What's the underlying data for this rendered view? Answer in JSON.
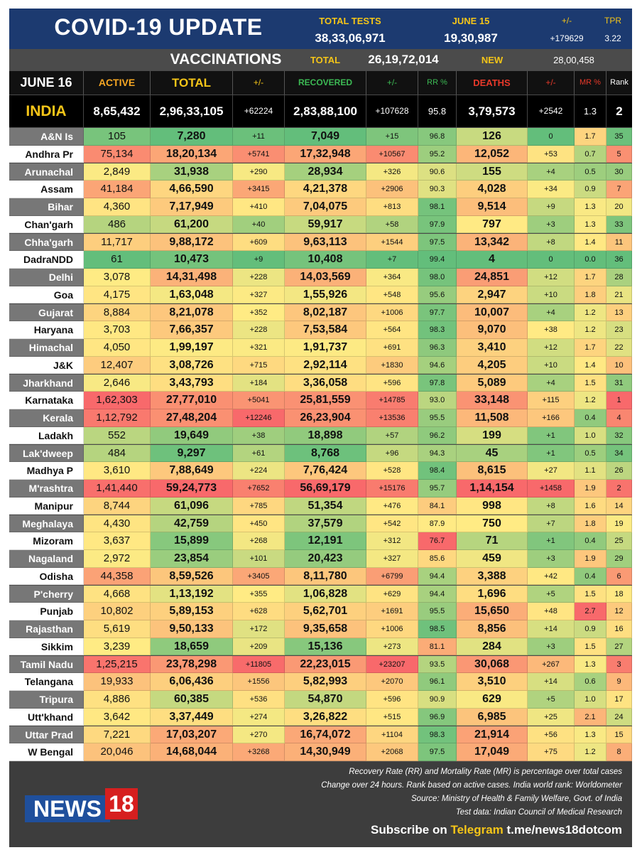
{
  "header": {
    "title": "COVID-19 UPDATE",
    "total_tests_label": "TOTAL TESTS",
    "total_tests": "38,33,06,971",
    "june15_label": "JUNE 15",
    "june15": "19,30,987",
    "pm_label": "+/-",
    "pm": "+179629",
    "tpr_label": "TPR",
    "tpr": "3.22"
  },
  "vaccinations": {
    "label": "VACCINATIONS",
    "total_label": "TOTAL",
    "total": "26,19,72,014",
    "new_label": "NEW",
    "new": "28,00,458"
  },
  "columns": {
    "date": "JUNE 16",
    "active": "ACTIVE",
    "total": "TOTAL",
    "pm1": "+/-",
    "recovered": "RECOVERED",
    "pm2": "+/-",
    "rr": "RR %",
    "deaths": "DEATHS",
    "pm3": "+/-",
    "mr": "MR %",
    "rank": "Rank"
  },
  "india": {
    "name": "INDIA",
    "active": "8,65,432",
    "total": "2,96,33,105",
    "d_total": "+62224",
    "recovered": "2,83,88,100",
    "d_rec": "+107628",
    "rr": "95.8",
    "deaths": "3,79,573",
    "d_deaths": "+2542",
    "mr": "1.3",
    "rank": "2"
  },
  "rows": [
    {
      "name": "A&N Is",
      "active": "105",
      "total": "7,280",
      "d_total": "+11",
      "recovered": "7,049",
      "d_rec": "+15",
      "rr": "96.8",
      "deaths": "126",
      "d_deaths": "0",
      "mr": "1.7",
      "rank": "35"
    },
    {
      "name": "Andhra Pr",
      "active": "75,134",
      "total": "18,20,134",
      "d_total": "+5741",
      "recovered": "17,32,948",
      "d_rec": "+10567",
      "rr": "95.2",
      "deaths": "12,052",
      "d_deaths": "+53",
      "mr": "0.7",
      "rank": "5"
    },
    {
      "name": "Arunachal",
      "active": "2,849",
      "total": "31,938",
      "d_total": "+290",
      "recovered": "28,934",
      "d_rec": "+326",
      "rr": "90.6",
      "deaths": "155",
      "d_deaths": "+4",
      "mr": "0.5",
      "rank": "30"
    },
    {
      "name": "Assam",
      "active": "41,184",
      "total": "4,66,590",
      "d_total": "+3415",
      "recovered": "4,21,378",
      "d_rec": "+2906",
      "rr": "90.3",
      "deaths": "4,028",
      "d_deaths": "+34",
      "mr": "0.9",
      "rank": "7"
    },
    {
      "name": "Bihar",
      "active": "4,360",
      "total": "7,17,949",
      "d_total": "+410",
      "recovered": "7,04,075",
      "d_rec": "+813",
      "rr": "98.1",
      "deaths": "9,514",
      "d_deaths": "+9",
      "mr": "1.3",
      "rank": "20"
    },
    {
      "name": "Chan'garh",
      "active": "486",
      "total": "61,200",
      "d_total": "+40",
      "recovered": "59,917",
      "d_rec": "+58",
      "rr": "97.9",
      "deaths": "797",
      "d_deaths": "+3",
      "mr": "1.3",
      "rank": "33"
    },
    {
      "name": "Chha'garh",
      "active": "11,717",
      "total": "9,88,172",
      "d_total": "+609",
      "recovered": "9,63,113",
      "d_rec": "+1544",
      "rr": "97.5",
      "deaths": "13,342",
      "d_deaths": "+8",
      "mr": "1.4",
      "rank": "11"
    },
    {
      "name": "DadraNDD",
      "active": "61",
      "total": "10,473",
      "d_total": "+9",
      "recovered": "10,408",
      "d_rec": "+7",
      "rr": "99.4",
      "deaths": "4",
      "d_deaths": "0",
      "mr": "0.0",
      "rank": "36"
    },
    {
      "name": "Delhi",
      "active": "3,078",
      "total": "14,31,498",
      "d_total": "+228",
      "recovered": "14,03,569",
      "d_rec": "+364",
      "rr": "98.0",
      "deaths": "24,851",
      "d_deaths": "+12",
      "mr": "1.7",
      "rank": "28"
    },
    {
      "name": "Goa",
      "active": "4,175",
      "total": "1,63,048",
      "d_total": "+327",
      "recovered": "1,55,926",
      "d_rec": "+548",
      "rr": "95.6",
      "deaths": "2,947",
      "d_deaths": "+10",
      "mr": "1.8",
      "rank": "21"
    },
    {
      "name": "Gujarat",
      "active": "8,884",
      "total": "8,21,078",
      "d_total": "+352",
      "recovered": "8,02,187",
      "d_rec": "+1006",
      "rr": "97.7",
      "deaths": "10,007",
      "d_deaths": "+4",
      "mr": "1.2",
      "rank": "13"
    },
    {
      "name": "Haryana",
      "active": "3,703",
      "total": "7,66,357",
      "d_total": "+228",
      "recovered": "7,53,584",
      "d_rec": "+564",
      "rr": "98.3",
      "deaths": "9,070",
      "d_deaths": "+38",
      "mr": "1.2",
      "rank": "23"
    },
    {
      "name": "Himachal",
      "active": "4,050",
      "total": "1,99,197",
      "d_total": "+321",
      "recovered": "1,91,737",
      "d_rec": "+691",
      "rr": "96.3",
      "deaths": "3,410",
      "d_deaths": "+12",
      "mr": "1.7",
      "rank": "22"
    },
    {
      "name": "J&K",
      "active": "12,407",
      "total": "3,08,726",
      "d_total": "+715",
      "recovered": "2,92,114",
      "d_rec": "+1830",
      "rr": "94.6",
      "deaths": "4,205",
      "d_deaths": "+10",
      "mr": "1.4",
      "rank": "10"
    },
    {
      "name": "Jharkhand",
      "active": "2,646",
      "total": "3,43,793",
      "d_total": "+184",
      "recovered": "3,36,058",
      "d_rec": "+596",
      "rr": "97.8",
      "deaths": "5,089",
      "d_deaths": "+4",
      "mr": "1.5",
      "rank": "31"
    },
    {
      "name": "Karnataka",
      "active": "1,62,303",
      "total": "27,77,010",
      "d_total": "+5041",
      "recovered": "25,81,559",
      "d_rec": "+14785",
      "rr": "93.0",
      "deaths": "33,148",
      "d_deaths": "+115",
      "mr": "1.2",
      "rank": "1"
    },
    {
      "name": "Kerala",
      "active": "1,12,792",
      "total": "27,48,204",
      "d_total": "+12246",
      "recovered": "26,23,904",
      "d_rec": "+13536",
      "rr": "95.5",
      "deaths": "11,508",
      "d_deaths": "+166",
      "mr": "0.4",
      "rank": "4"
    },
    {
      "name": "Ladakh",
      "active": "552",
      "total": "19,649",
      "d_total": "+38",
      "recovered": "18,898",
      "d_rec": "+57",
      "rr": "96.2",
      "deaths": "199",
      "d_deaths": "+1",
      "mr": "1.0",
      "rank": "32"
    },
    {
      "name": "Lak'dweep",
      "active": "484",
      "total": "9,297",
      "d_total": "+61",
      "recovered": "8,768",
      "d_rec": "+96",
      "rr": "94.3",
      "deaths": "45",
      "d_deaths": "+1",
      "mr": "0.5",
      "rank": "34"
    },
    {
      "name": "Madhya P",
      "active": "3,610",
      "total": "7,88,649",
      "d_total": "+224",
      "recovered": "7,76,424",
      "d_rec": "+528",
      "rr": "98.4",
      "deaths": "8,615",
      "d_deaths": "+27",
      "mr": "1.1",
      "rank": "26"
    },
    {
      "name": "M'rashtra",
      "active": "1,41,440",
      "total": "59,24,773",
      "d_total": "+7652",
      "recovered": "56,69,179",
      "d_rec": "+15176",
      "rr": "95.7",
      "deaths": "1,14,154",
      "d_deaths": "+1458",
      "mr": "1.9",
      "rank": "2"
    },
    {
      "name": "Manipur",
      "active": "8,744",
      "total": "61,096",
      "d_total": "+785",
      "recovered": "51,354",
      "d_rec": "+476",
      "rr": "84.1",
      "deaths": "998",
      "d_deaths": "+8",
      "mr": "1.6",
      "rank": "14"
    },
    {
      "name": "Meghalaya",
      "active": "4,430",
      "total": "42,759",
      "d_total": "+450",
      "recovered": "37,579",
      "d_rec": "+542",
      "rr": "87.9",
      "deaths": "750",
      "d_deaths": "+7",
      "mr": "1.8",
      "rank": "19"
    },
    {
      "name": "Mizoram",
      "active": "3,637",
      "total": "15,899",
      "d_total": "+268",
      "recovered": "12,191",
      "d_rec": "+312",
      "rr": "76.7",
      "deaths": "71",
      "d_deaths": "+1",
      "mr": "0.4",
      "rank": "25"
    },
    {
      "name": "Nagaland",
      "active": "2,972",
      "total": "23,854",
      "d_total": "+101",
      "recovered": "20,423",
      "d_rec": "+327",
      "rr": "85.6",
      "deaths": "459",
      "d_deaths": "+3",
      "mr": "1.9",
      "rank": "29"
    },
    {
      "name": "Odisha",
      "active": "44,358",
      "total": "8,59,526",
      "d_total": "+3405",
      "recovered": "8,11,780",
      "d_rec": "+6799",
      "rr": "94.4",
      "deaths": "3,388",
      "d_deaths": "+42",
      "mr": "0.4",
      "rank": "6"
    },
    {
      "name": "P'cherry",
      "active": "4,668",
      "total": "1,13,192",
      "d_total": "+355",
      "recovered": "1,06,828",
      "d_rec": "+629",
      "rr": "94.4",
      "deaths": "1,696",
      "d_deaths": "+5",
      "mr": "1.5",
      "rank": "18"
    },
    {
      "name": "Punjab",
      "active": "10,802",
      "total": "5,89,153",
      "d_total": "+628",
      "recovered": "5,62,701",
      "d_rec": "+1691",
      "rr": "95.5",
      "deaths": "15,650",
      "d_deaths": "+48",
      "mr": "2.7",
      "rank": "12"
    },
    {
      "name": "Rajasthan",
      "active": "5,619",
      "total": "9,50,133",
      "d_total": "+172",
      "recovered": "9,35,658",
      "d_rec": "+1006",
      "rr": "98.5",
      "deaths": "8,856",
      "d_deaths": "+14",
      "mr": "0.9",
      "rank": "16"
    },
    {
      "name": "Sikkim",
      "active": "3,239",
      "total": "18,659",
      "d_total": "+209",
      "recovered": "15,136",
      "d_rec": "+273",
      "rr": "81.1",
      "deaths": "284",
      "d_deaths": "+3",
      "mr": "1.5",
      "rank": "27"
    },
    {
      "name": "Tamil Nadu",
      "active": "1,25,215",
      "total": "23,78,298",
      "d_total": "+11805",
      "recovered": "22,23,015",
      "d_rec": "+23207",
      "rr": "93.5",
      "deaths": "30,068",
      "d_deaths": "+267",
      "mr": "1.3",
      "rank": "3"
    },
    {
      "name": "Telangana",
      "active": "19,933",
      "total": "6,06,436",
      "d_total": "+1556",
      "recovered": "5,82,993",
      "d_rec": "+2070",
      "rr": "96.1",
      "deaths": "3,510",
      "d_deaths": "+14",
      "mr": "0.6",
      "rank": "9"
    },
    {
      "name": "Tripura",
      "active": "4,886",
      "total": "60,385",
      "d_total": "+536",
      "recovered": "54,870",
      "d_rec": "+596",
      "rr": "90.9",
      "deaths": "629",
      "d_deaths": "+5",
      "mr": "1.0",
      "rank": "17"
    },
    {
      "name": "Utt'khand",
      "active": "3,642",
      "total": "3,37,449",
      "d_total": "+274",
      "recovered": "3,26,822",
      "d_rec": "+515",
      "rr": "96.9",
      "deaths": "6,985",
      "d_deaths": "+25",
      "mr": "2.1",
      "rank": "24"
    },
    {
      "name": "Uttar Prad",
      "active": "7,221",
      "total": "17,03,207",
      "d_total": "+270",
      "recovered": "16,74,072",
      "d_rec": "+1104",
      "rr": "98.3",
      "deaths": "21,914",
      "d_deaths": "+56",
      "mr": "1.3",
      "rank": "15"
    },
    {
      "name": "W Bengal",
      "active": "20,046",
      "total": "14,68,044",
      "d_total": "+3268",
      "recovered": "14,30,949",
      "d_rec": "+2068",
      "rr": "97.5",
      "deaths": "17,049",
      "d_deaths": "+75",
      "mr": "1.2",
      "rank": "8"
    }
  ],
  "footer": {
    "note1": "Recovery Rate (RR) and Mortality Rate (MR) is percentage over total cases",
    "note2": "Change over 24 hours. Rank based on active cases. India world rank: Worldometer",
    "note3": "Source: Ministry of Health & Family Welfare, Govt. of India",
    "note4": "Test data: Indian Council of Medical Research",
    "subscribe": "Subscribe on ",
    "telegram": "Telegram",
    "link": " t.me/news18dotcom",
    "logo_text": "NEWS",
    "logo_num": "18"
  }
}
